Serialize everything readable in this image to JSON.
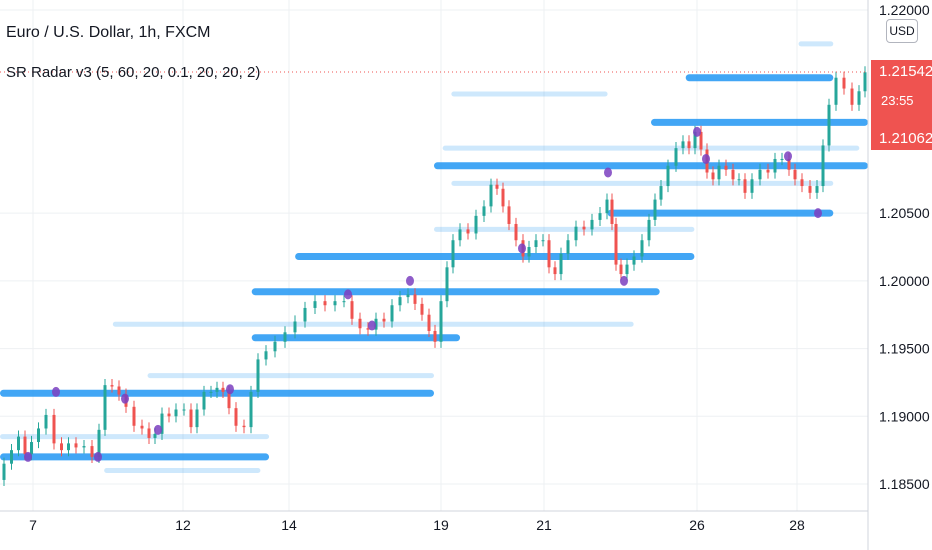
{
  "header": {
    "symbol_title": "Euro / U.S. Dollar, 1h, FXCM",
    "indicator_label": "SR Radar v3 (5, 60, 20, 0.1, 20, 20, 2)"
  },
  "currency_button": "USD",
  "last_price": {
    "price": "1.21542",
    "countdown": "23:55",
    "lower_price": "1.21062"
  },
  "colors": {
    "level_blue": "#2196f3",
    "pivot_purple": "#7b3fbf",
    "candle_up": "#26a69a",
    "candle_down": "#ef5350",
    "price_badge": "#ef5350"
  },
  "chart_data": {
    "type": "candlestick",
    "symbol": "EUR/USD",
    "timeframe": "1h",
    "x_ticks": [
      "7",
      "12",
      "14",
      "19",
      "21",
      "26",
      "28"
    ],
    "y_ticks": [
      "1.22000",
      "1.20500",
      "1.20000",
      "1.19500",
      "1.19000",
      "1.18500"
    ],
    "ylim": [
      1.1835,
      1.2207
    ],
    "last_price": 1.21542,
    "price_path": [
      [
        0,
        1.1853
      ],
      [
        8,
        1.1865
      ],
      [
        15,
        1.1875
      ],
      [
        22,
        1.1885
      ],
      [
        28,
        1.1872
      ],
      [
        35,
        1.1881
      ],
      [
        42,
        1.1891
      ],
      [
        50,
        1.1901
      ],
      [
        58,
        1.188
      ],
      [
        65,
        1.1875
      ],
      [
        72,
        1.188
      ],
      [
        80,
        1.1877
      ],
      [
        88,
        1.1878
      ],
      [
        96,
        1.187
      ],
      [
        102,
        1.189
      ],
      [
        108,
        1.1923
      ],
      [
        116,
        1.1922
      ],
      [
        122,
        1.1916
      ],
      [
        130,
        1.1907
      ],
      [
        138,
        1.1893
      ],
      [
        146,
        1.1891
      ],
      [
        152,
        1.1884
      ],
      [
        158,
        1.1887
      ],
      [
        166,
        1.1902
      ],
      [
        172,
        1.19
      ],
      [
        180,
        1.1905
      ],
      [
        188,
        1.1905
      ],
      [
        194,
        1.1892
      ],
      [
        200,
        1.1905
      ],
      [
        208,
        1.1918
      ],
      [
        214,
        1.1918
      ],
      [
        220,
        1.1921
      ],
      [
        226,
        1.1918
      ],
      [
        232,
        1.1906
      ],
      [
        240,
        1.1893
      ],
      [
        248,
        1.1892
      ],
      [
        254,
        1.1918
      ],
      [
        262,
        1.1942
      ],
      [
        270,
        1.1948
      ],
      [
        280,
        1.1955
      ],
      [
        290,
        1.1962
      ],
      [
        300,
        1.197
      ],
      [
        310,
        1.198
      ],
      [
        320,
        1.1985
      ],
      [
        330,
        1.1982
      ],
      [
        340,
        1.1985
      ],
      [
        348,
        1.1985
      ],
      [
        356,
        1.1972
      ],
      [
        364,
        1.1965
      ],
      [
        372,
        1.1964
      ],
      [
        380,
        1.1972
      ],
      [
        388,
        1.197
      ],
      [
        396,
        1.1982
      ],
      [
        404,
        1.1988
      ],
      [
        412,
        1.199
      ],
      [
        418,
        1.1983
      ],
      [
        426,
        1.1975
      ],
      [
        432,
        1.1963
      ],
      [
        438,
        1.1955
      ],
      [
        444,
        1.1985
      ],
      [
        450,
        1.201
      ],
      [
        456,
        1.203
      ],
      [
        464,
        1.2038
      ],
      [
        472,
        1.2035
      ],
      [
        480,
        1.2048
      ],
      [
        488,
        1.2055
      ],
      [
        494,
        1.2071
      ],
      [
        500,
        1.2068
      ],
      [
        506,
        1.2055
      ],
      [
        512,
        1.2042
      ],
      [
        520,
        1.203
      ],
      [
        526,
        1.2018
      ],
      [
        532,
        1.2025
      ],
      [
        540,
        1.203
      ],
      [
        546,
        1.203
      ],
      [
        552,
        1.201
      ],
      [
        558,
        1.2005
      ],
      [
        564,
        1.202
      ],
      [
        572,
        1.203
      ],
      [
        580,
        1.204
      ],
      [
        588,
        1.2038
      ],
      [
        596,
        1.2045
      ],
      [
        604,
        1.205
      ],
      [
        610,
        1.206
      ],
      [
        614,
        1.2042
      ],
      [
        618,
        1.2012
      ],
      [
        624,
        1.2005
      ],
      [
        630,
        1.2012
      ],
      [
        638,
        1.2018
      ],
      [
        646,
        1.203
      ],
      [
        652,
        1.2045
      ],
      [
        658,
        1.206
      ],
      [
        664,
        1.207
      ],
      [
        672,
        1.2085
      ],
      [
        680,
        1.2098
      ],
      [
        686,
        1.2103
      ],
      [
        692,
        1.2098
      ],
      [
        698,
        1.211
      ],
      [
        704,
        1.2097
      ],
      [
        710,
        1.208
      ],
      [
        716,
        1.2075
      ],
      [
        722,
        1.2085
      ],
      [
        730,
        1.2082
      ],
      [
        736,
        1.2075
      ],
      [
        742,
        1.2075
      ],
      [
        748,
        1.2065
      ],
      [
        756,
        1.2075
      ],
      [
        764,
        1.2082
      ],
      [
        772,
        1.208
      ],
      [
        778,
        1.209
      ],
      [
        786,
        1.209
      ],
      [
        792,
        1.2082
      ],
      [
        798,
        1.2075
      ],
      [
        806,
        1.207
      ],
      [
        814,
        1.2065
      ],
      [
        820,
        1.207
      ],
      [
        826,
        1.21
      ],
      [
        832,
        1.213
      ],
      [
        840,
        1.215
      ],
      [
        848,
        1.2142
      ],
      [
        856,
        1.213
      ],
      [
        862,
        1.214
      ],
      [
        868,
        1.2154
      ]
    ],
    "strong_levels": [
      {
        "price": 1.215,
        "from": 0.79,
        "to": 0.96
      },
      {
        "price": 1.2117,
        "from": 0.75,
        "to": 1.0
      },
      {
        "price": 1.2085,
        "from": 0.5,
        "to": 1.0
      },
      {
        "price": 1.205,
        "from": 0.7,
        "to": 0.96
      },
      {
        "price": 1.2018,
        "from": 0.34,
        "to": 0.8
      },
      {
        "price": 1.1992,
        "from": 0.29,
        "to": 0.76
      },
      {
        "price": 1.1958,
        "from": 0.29,
        "to": 0.53
      },
      {
        "price": 1.1917,
        "from": 0.0,
        "to": 0.5
      },
      {
        "price": 1.187,
        "from": 0.0,
        "to": 0.31
      }
    ],
    "faint_levels": [
      {
        "price": 1.2175,
        "from": 0.92,
        "to": 0.96
      },
      {
        "price": 1.2138,
        "from": 0.52,
        "to": 0.7
      },
      {
        "price": 1.2098,
        "from": 0.51,
        "to": 0.99
      },
      {
        "price": 1.2072,
        "from": 0.52,
        "to": 0.96
      },
      {
        "price": 1.2038,
        "from": 0.5,
        "to": 0.8
      },
      {
        "price": 1.1968,
        "from": 0.13,
        "to": 0.73
      },
      {
        "price": 1.193,
        "from": 0.17,
        "to": 0.5
      },
      {
        "price": 1.1885,
        "from": 0.0,
        "to": 0.31
      },
      {
        "price": 1.186,
        "from": 0.12,
        "to": 0.3
      }
    ],
    "pivots": [
      [
        28,
        1.187
      ],
      [
        56,
        1.1918
      ],
      [
        98,
        1.187
      ],
      [
        125,
        1.1913
      ],
      [
        158,
        1.189
      ],
      [
        230,
        1.192
      ],
      [
        348,
        1.199
      ],
      [
        372,
        1.1967
      ],
      [
        410,
        1.2
      ],
      [
        522,
        1.2024
      ],
      [
        608,
        1.208
      ],
      [
        624,
        1.2
      ],
      [
        697,
        1.211
      ],
      [
        706,
        1.209
      ],
      [
        788,
        1.2092
      ],
      [
        818,
        1.205
      ]
    ]
  }
}
